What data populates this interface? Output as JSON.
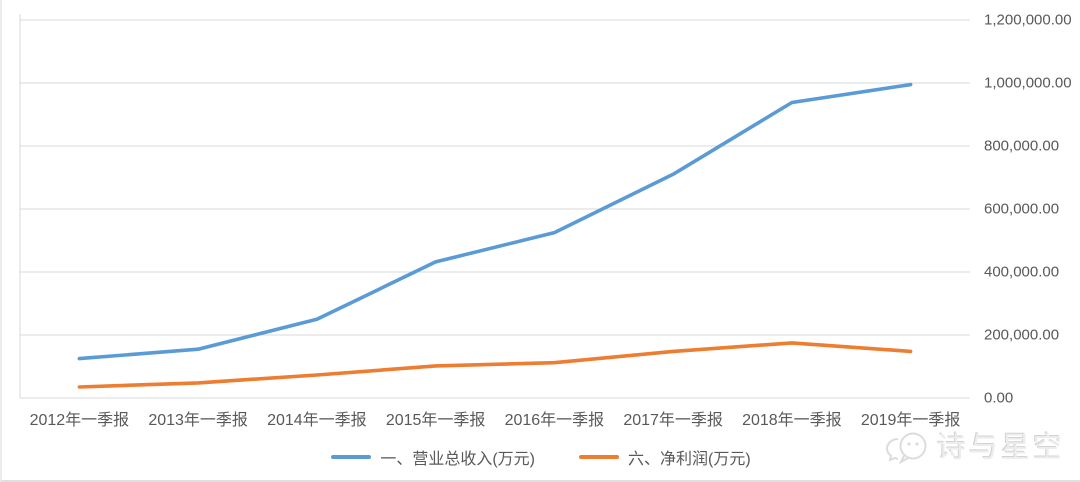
{
  "chart_data": {
    "type": "line",
    "categories": [
      "2012年一季报",
      "2013年一季报",
      "2014年一季报",
      "2015年一季报",
      "2016年一季报",
      "2017年一季报",
      "2018年一季报",
      "2019年一季报"
    ],
    "series": [
      {
        "name": "一、营业总收入(万元)",
        "color": "#5B9BD5",
        "values": [
          125000,
          155000,
          250000,
          432000,
          525000,
          710000,
          938000,
          995000
        ]
      },
      {
        "name": "六、净利润(万元)",
        "color": "#ED7D31",
        "values": [
          35000,
          48000,
          73000,
          102000,
          112000,
          148000,
          175000,
          148000
        ]
      }
    ],
    "title": "",
    "xlabel": "",
    "ylabel": "",
    "ylim": [
      0,
      1200000
    ],
    "y_tick_step": 200000,
    "y_tick_labels_top_to_bottom": [
      "1,200,000.00",
      "1,000,000.00",
      "800,000.00",
      "600,000.00",
      "400,000.00",
      "200,000.00",
      "0.00"
    ],
    "y_axis_side": "right",
    "grid": true,
    "legend_position": "bottom"
  },
  "colors": {
    "gridline": "#d9d9d9",
    "axis_text": "#595959",
    "series_blue": "#5B9BD5",
    "series_orange": "#ED7D31",
    "watermark": "#ededed"
  },
  "watermark": {
    "text": "诗与星空",
    "icon": "chat-bubbles-icon"
  }
}
